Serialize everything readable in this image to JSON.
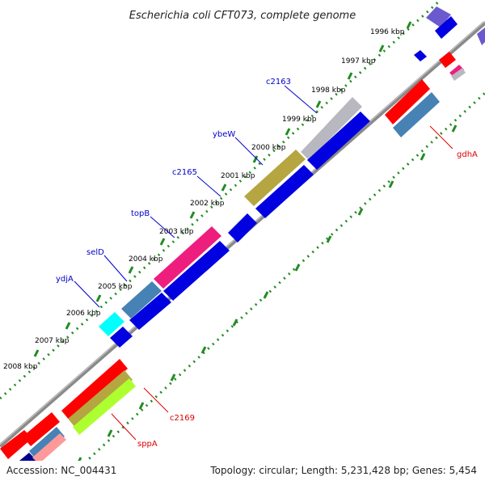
{
  "title": "Escherichia coli CFT073, complete genome",
  "footer": {
    "accession": "Accession: NC_004431",
    "summary": "Topology: circular; Length: 5,231,428 bp; Genes: 5,454"
  },
  "colors": {
    "backbone": "#808080",
    "tick_major": "#228B22",
    "label_forward": "#0000CD",
    "label_reverse": "#DD0000"
  },
  "kbp_labels": [
    "1996 kbp",
    "1997 kbp",
    "1998 kbp",
    "1999 kbp",
    "2000 kbp",
    "2001 kbp",
    "2002 kbp",
    "2003 kbp",
    "2004 kbp",
    "2005 kbp",
    "2006 kbp",
    "2007 kbp",
    "2008 kbp"
  ],
  "gene_labels": {
    "c2163": "c2163",
    "ybeW": "ybeW",
    "c2165": "c2165",
    "topB": "topB",
    "selD": "selD",
    "ydjA": "ydjA",
    "gdhA": "gdhA",
    "c2169": "c2169",
    "sppA": "sppA"
  }
}
